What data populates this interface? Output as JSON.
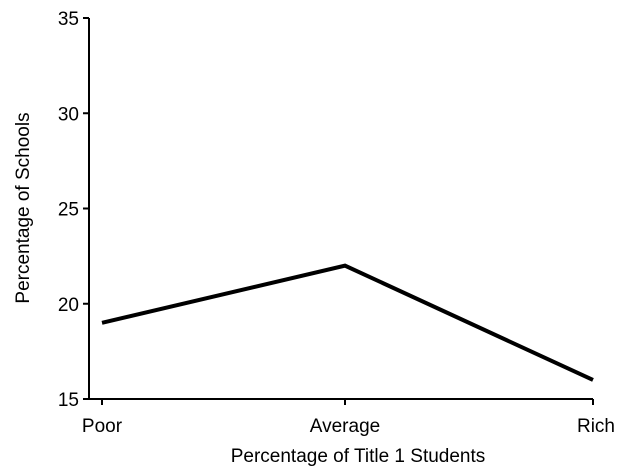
{
  "chart_data": {
    "type": "line",
    "title": "",
    "xlabel": "Percentage of Title 1 Students",
    "ylabel": "Percentage of Schools",
    "categories": [
      "Poor",
      "Average",
      "Rich"
    ],
    "series": [
      {
        "values": [
          19,
          22,
          16
        ]
      }
    ],
    "ylim": [
      15,
      35
    ],
    "yticks": [
      15,
      20,
      25,
      30,
      35
    ],
    "ytick_labels": [
      "15",
      "20",
      "25",
      "30",
      "35"
    ],
    "grid": false,
    "line_color": "#000000"
  }
}
